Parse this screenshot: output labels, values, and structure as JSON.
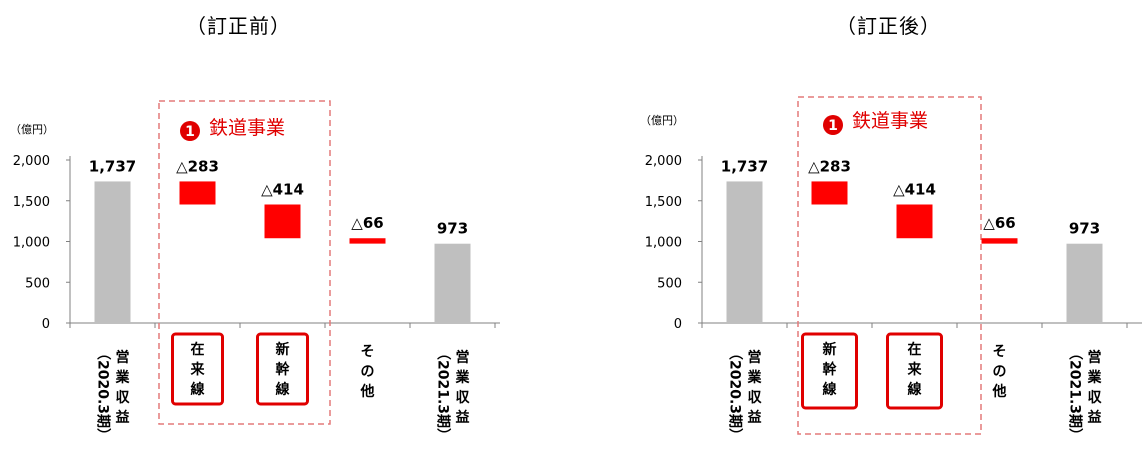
{
  "titles": {
    "left": "（訂正前）",
    "right": "（訂正後）"
  },
  "colors": {
    "total_bar": "#bfbfbf",
    "decrease_bar": "#ff0000",
    "highlight": "#e00000",
    "dashed_box": "#e47a7a"
  },
  "chart_data": [
    {
      "type": "bar",
      "variant": "waterfall",
      "title": "",
      "unit": "（億円）",
      "ylim": [
        0,
        2000
      ],
      "yticks": [
        "0",
        "500",
        "1,000",
        "1,500",
        "2,000"
      ],
      "group_label": {
        "number": "1",
        "text": "鉄道事業"
      },
      "categories": [
        {
          "label": "営業収益",
          "sub": "（2020.3期）"
        },
        {
          "label": "在来線",
          "boxed": true
        },
        {
          "label": "新幹線",
          "boxed": true
        },
        {
          "label": "その他"
        },
        {
          "label": "営業収益",
          "sub": "（2021.3期）"
        }
      ],
      "bars": [
        {
          "kind": "total",
          "base": 0,
          "value": 1737,
          "label": "1,737"
        },
        {
          "kind": "decrease",
          "value": 283,
          "label": "△283"
        },
        {
          "kind": "decrease",
          "value": 414,
          "label": "△414"
        },
        {
          "kind": "decrease",
          "value": 66,
          "label": "△66"
        },
        {
          "kind": "total",
          "base": 0,
          "value": 973,
          "label": "973"
        }
      ]
    },
    {
      "type": "bar",
      "variant": "waterfall",
      "title": "",
      "unit": "（億円）",
      "ylim": [
        0,
        2000
      ],
      "yticks": [
        "0",
        "500",
        "1,000",
        "1,500",
        "2,000"
      ],
      "group_label": {
        "number": "1",
        "text": "鉄道事業"
      },
      "categories": [
        {
          "label": "営業収益",
          "sub": "（2020.3期）"
        },
        {
          "label": "新幹線",
          "boxed": true
        },
        {
          "label": "在来線",
          "boxed": true
        },
        {
          "label": "その他"
        },
        {
          "label": "営業収益",
          "sub": "（2021.3期）"
        }
      ],
      "bars": [
        {
          "kind": "total",
          "base": 0,
          "value": 1737,
          "label": "1,737"
        },
        {
          "kind": "decrease",
          "value": 283,
          "label": "△283"
        },
        {
          "kind": "decrease",
          "value": 414,
          "label": "△414"
        },
        {
          "kind": "decrease",
          "value": 66,
          "label": "△66"
        },
        {
          "kind": "total",
          "base": 0,
          "value": 973,
          "label": "973"
        }
      ]
    }
  ]
}
